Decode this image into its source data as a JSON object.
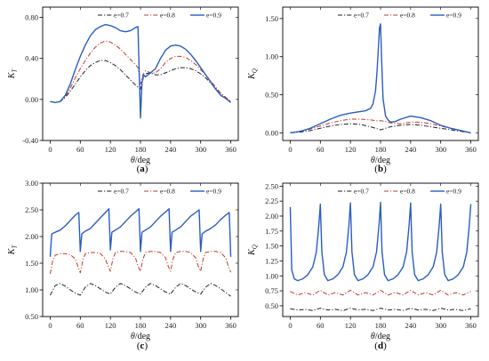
{
  "chart_data": [
    {
      "panel": "(a)",
      "panel_letter": "a",
      "type": "line",
      "xlabel_symbol": "θ",
      "xlabel_unit": "/deg",
      "ylabel_symbol": "K",
      "ylabel_sub": "T",
      "xlim": [
        -15,
        375
      ],
      "ylim": [
        -0.4,
        0.9
      ],
      "xticks": [
        0,
        60,
        120,
        180,
        240,
        300,
        360
      ],
      "yticks": [
        -0.4,
        0.0,
        0.4,
        0.8
      ],
      "ytick_labels": [
        "-0.40",
        "0.00",
        "0.40",
        "0.80"
      ],
      "legend": [
        "e=0.7",
        "e=0.8",
        "e=0.9"
      ],
      "series": [
        {
          "name": "e=0.7",
          "color": "#222222",
          "style": "dashdot",
          "x": [
            0,
            10,
            20,
            30,
            40,
            50,
            60,
            70,
            80,
            90,
            100,
            110,
            120,
            130,
            140,
            150,
            160,
            170,
            175,
            180,
            185,
            190,
            200,
            210,
            220,
            230,
            240,
            250,
            260,
            270,
            280,
            290,
            300,
            310,
            320,
            330,
            340,
            350,
            360
          ],
          "y": [
            -0.02,
            -0.03,
            -0.02,
            0.02,
            0.08,
            0.15,
            0.22,
            0.28,
            0.33,
            0.36,
            0.38,
            0.38,
            0.36,
            0.33,
            0.29,
            0.24,
            0.19,
            0.14,
            0.12,
            0.1,
            0.2,
            0.25,
            0.26,
            0.24,
            0.24,
            0.26,
            0.28,
            0.3,
            0.31,
            0.31,
            0.3,
            0.28,
            0.25,
            0.21,
            0.16,
            0.11,
            0.06,
            0.02,
            -0.02
          ]
        },
        {
          "name": "e=0.8",
          "color": "#c0392b",
          "style": "dashdot",
          "x": [
            0,
            10,
            20,
            30,
            40,
            50,
            60,
            70,
            80,
            90,
            100,
            110,
            120,
            130,
            140,
            150,
            160,
            170,
            175,
            180,
            185,
            190,
            200,
            210,
            220,
            230,
            240,
            250,
            260,
            270,
            280,
            290,
            300,
            310,
            320,
            330,
            340,
            350,
            360
          ],
          "y": [
            -0.02,
            -0.03,
            -0.02,
            0.03,
            0.11,
            0.21,
            0.3,
            0.38,
            0.45,
            0.51,
            0.55,
            0.57,
            0.56,
            0.53,
            0.49,
            0.44,
            0.39,
            0.34,
            0.31,
            0.15,
            0.24,
            0.28,
            0.26,
            0.26,
            0.3,
            0.36,
            0.4,
            0.42,
            0.42,
            0.41,
            0.38,
            0.34,
            0.29,
            0.24,
            0.18,
            0.12,
            0.06,
            0.02,
            -0.02
          ]
        },
        {
          "name": "e=0.9",
          "color": "#2a5cc4",
          "style": "solid",
          "x": [
            0,
            10,
            20,
            30,
            40,
            50,
            60,
            70,
            80,
            90,
            100,
            110,
            120,
            130,
            140,
            150,
            160,
            170,
            175,
            180,
            183,
            186,
            190,
            200,
            210,
            220,
            230,
            240,
            250,
            260,
            270,
            280,
            290,
            300,
            310,
            320,
            330,
            340,
            350,
            360
          ],
          "y": [
            -0.02,
            -0.03,
            -0.02,
            0.04,
            0.15,
            0.29,
            0.42,
            0.53,
            0.62,
            0.68,
            0.71,
            0.73,
            0.72,
            0.7,
            0.67,
            0.66,
            0.67,
            0.7,
            0.71,
            -0.18,
            0.16,
            0.24,
            0.22,
            0.26,
            0.3,
            0.4,
            0.48,
            0.52,
            0.53,
            0.52,
            0.49,
            0.44,
            0.38,
            0.31,
            0.24,
            0.17,
            0.1,
            0.04,
            0.01,
            -0.03
          ]
        }
      ]
    },
    {
      "panel": "(b)",
      "panel_letter": "b",
      "type": "line",
      "xlabel_symbol": "θ",
      "xlabel_unit": "/deg",
      "ylabel_symbol": "K",
      "ylabel_sub": "Q",
      "xlim": [
        -15,
        375
      ],
      "ylim": [
        -0.1,
        1.65
      ],
      "xticks": [
        0,
        60,
        120,
        180,
        240,
        300,
        360
      ],
      "yticks": [
        0.0,
        0.5,
        1.0,
        1.5
      ],
      "ytick_labels": [
        "0.00",
        "0.50",
        "1.00",
        "1.50"
      ],
      "legend": [
        "e=0.7",
        "e=0.8",
        "e=0.9"
      ],
      "series": [
        {
          "name": "e=0.7",
          "color": "#222222",
          "style": "dashdot",
          "x": [
            0,
            20,
            40,
            60,
            80,
            100,
            120,
            140,
            160,
            170,
            180,
            190,
            200,
            220,
            240,
            260,
            280,
            300,
            320,
            340,
            360
          ],
          "y": [
            0.0,
            0.01,
            0.03,
            0.06,
            0.09,
            0.11,
            0.12,
            0.11,
            0.08,
            0.06,
            0.04,
            0.06,
            0.08,
            0.1,
            0.11,
            0.1,
            0.08,
            0.06,
            0.04,
            0.02,
            0.0
          ]
        },
        {
          "name": "e=0.8",
          "color": "#c0392b",
          "style": "dashdot",
          "x": [
            0,
            20,
            40,
            60,
            80,
            100,
            120,
            140,
            160,
            170,
            180,
            190,
            200,
            220,
            240,
            260,
            280,
            300,
            320,
            340,
            360
          ],
          "y": [
            0.0,
            0.02,
            0.05,
            0.09,
            0.13,
            0.16,
            0.18,
            0.18,
            0.17,
            0.16,
            0.16,
            0.15,
            0.13,
            0.12,
            0.14,
            0.14,
            0.12,
            0.09,
            0.06,
            0.03,
            0.0
          ]
        },
        {
          "name": "e=0.9",
          "color": "#2a5cc4",
          "style": "solid",
          "x": [
            0,
            20,
            40,
            60,
            80,
            100,
            120,
            140,
            150,
            160,
            165,
            170,
            173,
            176,
            178,
            180,
            182,
            185,
            190,
            195,
            200,
            210,
            220,
            240,
            260,
            280,
            300,
            320,
            340,
            360
          ],
          "y": [
            0.0,
            0.02,
            0.06,
            0.12,
            0.18,
            0.23,
            0.26,
            0.28,
            0.29,
            0.32,
            0.38,
            0.55,
            0.8,
            1.15,
            1.38,
            1.43,
            1.0,
            0.45,
            0.22,
            0.17,
            0.14,
            0.15,
            0.18,
            0.22,
            0.2,
            0.16,
            0.1,
            0.06,
            0.03,
            0.0
          ]
        }
      ]
    },
    {
      "panel": "(c)",
      "panel_letter": "c",
      "type": "line",
      "xlabel_symbol": "θ",
      "xlabel_unit": "/deg",
      "ylabel_symbol": "K",
      "ylabel_sub": "T",
      "xlim": [
        -15,
        375
      ],
      "ylim": [
        0.5,
        3.0
      ],
      "xticks": [
        0,
        60,
        120,
        180,
        240,
        300,
        360
      ],
      "yticks": [
        0.5,
        1.0,
        1.5,
        2.0,
        2.5,
        3.0
      ],
      "ytick_labels": [
        "0.50",
        "1.00",
        "1.50",
        "2.00",
        "2.50",
        "3.00"
      ],
      "legend": [
        "e=0.7",
        "e=0.8",
        "e=0.9"
      ],
      "series": [
        {
          "name": "e=0.7",
          "color": "#222222",
          "style": "dashdot",
          "x": [
            0,
            10,
            20,
            30,
            40,
            50,
            60,
            70,
            80,
            90,
            100,
            110,
            120,
            130,
            140,
            150,
            160,
            170,
            180,
            190,
            200,
            210,
            220,
            230,
            240,
            250,
            260,
            270,
            280,
            290,
            300,
            310,
            320,
            330,
            340,
            350,
            360
          ],
          "y": [
            0.9,
            1.08,
            1.12,
            1.07,
            1.0,
            0.94,
            0.9,
            1.05,
            1.12,
            1.08,
            1.02,
            0.96,
            0.92,
            1.05,
            1.12,
            1.08,
            1.02,
            0.96,
            0.92,
            1.05,
            1.12,
            1.08,
            1.02,
            0.96,
            0.92,
            1.05,
            1.12,
            1.08,
            1.02,
            0.96,
            0.92,
            1.05,
            1.12,
            1.08,
            1.02,
            0.95,
            0.88
          ]
        },
        {
          "name": "e=0.8",
          "color": "#c0392b",
          "style": "dashdot",
          "x": [
            0,
            5,
            10,
            20,
            30,
            40,
            50,
            55,
            60,
            65,
            70,
            80,
            90,
            100,
            110,
            115,
            120,
            125,
            130,
            140,
            150,
            160,
            170,
            175,
            180,
            185,
            190,
            200,
            210,
            220,
            230,
            235,
            240,
            245,
            250,
            260,
            270,
            280,
            290,
            295,
            300,
            305,
            310,
            320,
            330,
            340,
            350,
            355,
            360
          ],
          "y": [
            1.3,
            1.55,
            1.65,
            1.68,
            1.68,
            1.66,
            1.58,
            1.45,
            1.32,
            1.55,
            1.68,
            1.7,
            1.7,
            1.68,
            1.58,
            1.45,
            1.35,
            1.58,
            1.7,
            1.72,
            1.72,
            1.7,
            1.6,
            1.45,
            1.35,
            1.58,
            1.7,
            1.72,
            1.72,
            1.7,
            1.6,
            1.45,
            1.35,
            1.58,
            1.7,
            1.72,
            1.72,
            1.7,
            1.6,
            1.45,
            1.35,
            1.58,
            1.7,
            1.72,
            1.72,
            1.7,
            1.6,
            1.45,
            1.33
          ]
        },
        {
          "name": "e=0.9",
          "color": "#2a5cc4",
          "style": "solid",
          "x": [
            0,
            3,
            10,
            20,
            30,
            40,
            50,
            57,
            60,
            63,
            70,
            80,
            90,
            100,
            110,
            117,
            120,
            123,
            130,
            140,
            150,
            160,
            170,
            177,
            180,
            183,
            190,
            200,
            210,
            220,
            230,
            237,
            240,
            243,
            250,
            260,
            270,
            280,
            290,
            297,
            300,
            303,
            310,
            320,
            330,
            340,
            350,
            357,
            360
          ],
          "y": [
            1.62,
            2.05,
            2.08,
            2.12,
            2.2,
            2.3,
            2.4,
            2.45,
            1.72,
            2.05,
            2.1,
            2.15,
            2.25,
            2.35,
            2.45,
            2.52,
            1.75,
            2.08,
            2.12,
            2.18,
            2.28,
            2.38,
            2.46,
            2.52,
            1.72,
            2.08,
            2.12,
            2.18,
            2.28,
            2.38,
            2.46,
            2.52,
            1.72,
            2.08,
            2.12,
            2.18,
            2.28,
            2.38,
            2.45,
            2.5,
            1.72,
            2.05,
            2.1,
            2.15,
            2.22,
            2.32,
            2.4,
            2.45,
            1.62
          ]
        }
      ]
    },
    {
      "panel": "(d)",
      "panel_letter": "d",
      "type": "line",
      "xlabel_symbol": "θ",
      "xlabel_unit": "/deg",
      "ylabel_symbol": "K",
      "ylabel_sub": "Q",
      "xlim": [
        -15,
        375
      ],
      "ylim": [
        0.32,
        2.55
      ],
      "xticks": [
        0,
        60,
        120,
        180,
        240,
        300,
        360
      ],
      "yticks": [
        0.5,
        0.75,
        1.0,
        1.25,
        1.5,
        1.75,
        2.0,
        2.25,
        2.5
      ],
      "ytick_labels": [
        "0.50",
        "0.75",
        "1.00",
        "1.25",
        "1.50",
        "1.75",
        "2.00",
        "2.25",
        "2.50"
      ],
      "legend": [
        "e=0.7",
        "e=0.8",
        "e=0.9"
      ],
      "series": [
        {
          "name": "e=0.7",
          "color": "#222222",
          "style": "dashdot",
          "x": [
            0,
            15,
            30,
            45,
            60,
            75,
            90,
            105,
            120,
            135,
            150,
            165,
            180,
            195,
            210,
            225,
            240,
            255,
            270,
            285,
            300,
            315,
            330,
            345,
            360
          ],
          "y": [
            0.45,
            0.43,
            0.44,
            0.42,
            0.46,
            0.43,
            0.44,
            0.42,
            0.46,
            0.43,
            0.44,
            0.42,
            0.46,
            0.43,
            0.44,
            0.42,
            0.46,
            0.43,
            0.44,
            0.42,
            0.46,
            0.43,
            0.44,
            0.42,
            0.45
          ]
        },
        {
          "name": "e=0.8",
          "color": "#c0392b",
          "style": "dashdot",
          "x": [
            0,
            15,
            30,
            45,
            60,
            75,
            90,
            105,
            120,
            135,
            150,
            165,
            180,
            195,
            210,
            225,
            240,
            255,
            270,
            285,
            300,
            315,
            330,
            345,
            360
          ],
          "y": [
            0.74,
            0.68,
            0.72,
            0.68,
            0.76,
            0.68,
            0.72,
            0.68,
            0.76,
            0.68,
            0.72,
            0.68,
            0.76,
            0.68,
            0.72,
            0.68,
            0.76,
            0.68,
            0.72,
            0.68,
            0.76,
            0.68,
            0.72,
            0.68,
            0.74
          ]
        },
        {
          "name": "e=0.9",
          "color": "#2a5cc4",
          "style": "solid",
          "x": [
            0,
            3,
            8,
            15,
            25,
            35,
            45,
            52,
            57,
            60,
            63,
            68,
            75,
            85,
            95,
            105,
            112,
            117,
            120,
            123,
            128,
            135,
            145,
            155,
            165,
            172,
            177,
            180,
            183,
            188,
            195,
            205,
            215,
            225,
            232,
            237,
            240,
            243,
            248,
            255,
            265,
            275,
            285,
            292,
            297,
            300,
            303,
            308,
            315,
            325,
            335,
            345,
            352,
            357,
            360
          ],
          "y": [
            2.15,
            1.1,
            0.95,
            0.92,
            0.95,
            1.02,
            1.15,
            1.4,
            1.85,
            2.2,
            1.4,
            1.02,
            0.92,
            0.95,
            1.02,
            1.15,
            1.4,
            1.85,
            2.22,
            1.4,
            1.02,
            0.92,
            0.95,
            1.02,
            1.15,
            1.4,
            1.85,
            2.23,
            1.4,
            1.02,
            0.92,
            0.95,
            1.02,
            1.15,
            1.4,
            1.85,
            2.22,
            1.4,
            1.02,
            0.92,
            0.95,
            1.02,
            1.15,
            1.4,
            1.85,
            2.2,
            1.4,
            1.02,
            0.92,
            0.95,
            1.02,
            1.15,
            1.4,
            1.85,
            2.2
          ]
        }
      ]
    }
  ]
}
